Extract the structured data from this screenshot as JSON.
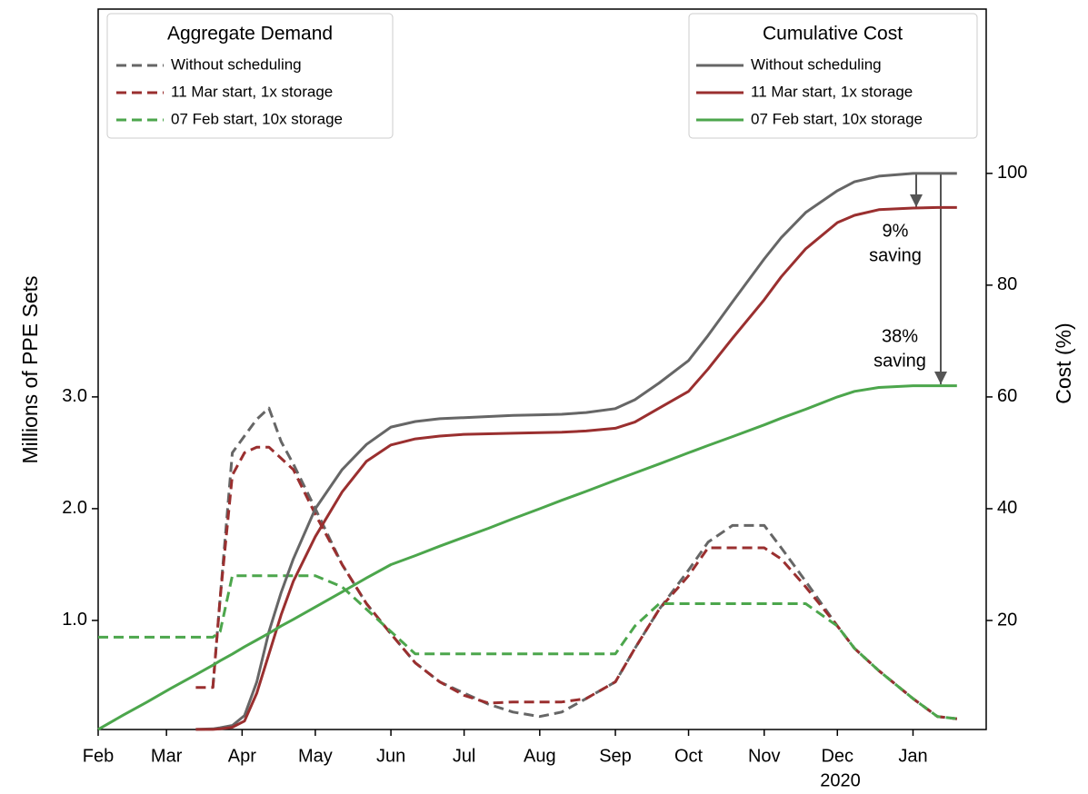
{
  "chart_data": {
    "type": "line",
    "ylabel": "Millions of PPE Sets",
    "y2label": "Cost (%)",
    "xlim": [
      0,
      364
    ],
    "ylim": [
      0.024,
      6.47
    ],
    "y2lim": [
      0.49,
      129.4
    ],
    "xticks": [
      {
        "value": 0,
        "label": "Feb"
      },
      {
        "value": 28,
        "label": "Mar"
      },
      {
        "value": 59,
        "label": "Apr"
      },
      {
        "value": 89,
        "label": "May"
      },
      {
        "value": 120,
        "label": "Jun"
      },
      {
        "value": 150,
        "label": "Jul"
      },
      {
        "value": 181,
        "label": "Aug"
      },
      {
        "value": 212,
        "label": "Sep"
      },
      {
        "value": 242,
        "label": "Oct"
      },
      {
        "value": 273,
        "label": "Nov"
      },
      {
        "value": 303,
        "label": "Dec"
      },
      {
        "value": 334,
        "label": "Jan"
      }
    ],
    "yticks": [
      {
        "value": 1,
        "label": "1.0"
      },
      {
        "value": 2,
        "label": "2.0"
      },
      {
        "value": 3,
        "label": "3.0"
      }
    ],
    "y2ticks": [
      20,
      40,
      60,
      80,
      100
    ],
    "annotations": {
      "year": "2020",
      "saving_small": [
        "9%",
        "saving"
      ],
      "saving_large": [
        "38%",
        "saving"
      ]
    },
    "legends": [
      {
        "title": "Aggregate Demand",
        "corner": "upper left"
      },
      {
        "title": "Cumulative Cost",
        "corner": "upper right"
      }
    ],
    "x": [
      0,
      10,
      20,
      30,
      40,
      47,
      50,
      55,
      60,
      65,
      70,
      75,
      80,
      89,
      100,
      110,
      120,
      130,
      140,
      150,
      160,
      170,
      181,
      190,
      200,
      212,
      220,
      230,
      242,
      250,
      260,
      273,
      280,
      290,
      303,
      310,
      320,
      334,
      344,
      352
    ],
    "series": [
      {
        "name": "Without scheduling",
        "color": "#666666",
        "dash": true,
        "axis": "y",
        "legend": 0,
        "values": [
          null,
          null,
          null,
          null,
          null,
          0.4,
          1.2,
          2.5,
          2.65,
          2.8,
          2.9,
          2.6,
          2.4,
          2.0,
          1.5,
          1.15,
          0.88,
          0.62,
          0.45,
          0.35,
          0.25,
          0.18,
          0.14,
          0.18,
          0.3,
          0.45,
          0.75,
          1.1,
          1.45,
          1.7,
          1.85,
          1.85,
          1.65,
          1.35,
          0.95,
          0.75,
          0.55,
          0.3,
          0.14,
          0.12
        ]
      },
      {
        "name": "11 Mar start, 1x storage",
        "color": "#9a2f2f",
        "dash": true,
        "axis": "y",
        "legend": 0,
        "values": [
          null,
          null,
          null,
          null,
          0.4,
          0.4,
          1.2,
          2.3,
          2.5,
          2.55,
          2.55,
          2.45,
          2.35,
          1.95,
          1.5,
          1.15,
          0.88,
          0.62,
          0.45,
          0.33,
          0.26,
          0.27,
          0.27,
          0.27,
          0.3,
          0.45,
          0.75,
          1.1,
          1.4,
          1.65,
          1.65,
          1.65,
          1.55,
          1.3,
          0.95,
          0.75,
          0.55,
          0.3,
          0.14,
          0.12
        ]
      },
      {
        "name": "07 Feb start, 10x storage",
        "color": "#4ca64c",
        "dash": true,
        "axis": "y",
        "legend": 0,
        "values": [
          0.85,
          0.85,
          0.85,
          0.85,
          0.85,
          0.85,
          0.9,
          1.4,
          1.4,
          1.4,
          1.4,
          1.4,
          1.4,
          1.4,
          1.3,
          1.1,
          0.9,
          0.7,
          0.7,
          0.7,
          0.7,
          0.7,
          0.7,
          0.7,
          0.7,
          0.7,
          0.95,
          1.15,
          1.15,
          1.15,
          1.15,
          1.15,
          1.15,
          1.15,
          0.95,
          0.75,
          0.55,
          0.3,
          0.14,
          0.12
        ]
      },
      {
        "name": "Without scheduling",
        "color": "#666666",
        "dash": false,
        "axis": "y2",
        "legend": 1,
        "values": [
          null,
          null,
          null,
          null,
          0.5,
          0.6,
          0.8,
          1.2,
          3,
          9,
          18,
          25,
          31,
          40,
          47,
          51.5,
          54.6,
          55.6,
          56.1,
          56.3,
          56.5,
          56.7,
          56.8,
          56.9,
          57.2,
          57.9,
          59.5,
          62.5,
          66.5,
          71,
          77,
          84.7,
          88.5,
          93,
          96.9,
          98.5,
          99.5,
          100,
          100,
          100
        ]
      },
      {
        "name": "11 Mar start, 1x storage",
        "color": "#9a2f2f",
        "dash": false,
        "axis": "y2",
        "legend": 1,
        "values": [
          null,
          null,
          null,
          null,
          0.5,
          0.5,
          0.6,
          0.9,
          2,
          7,
          14,
          21,
          27,
          35,
          43,
          48.5,
          51.4,
          52.5,
          53,
          53.3,
          53.4,
          53.5,
          53.6,
          53.7,
          53.9,
          54.4,
          55.5,
          58,
          61,
          65,
          70.5,
          77.4,
          81.5,
          86.5,
          91.2,
          92.5,
          93.5,
          93.8,
          93.9,
          93.9
        ]
      },
      {
        "name": "07 Feb start, 10x storage",
        "color": "#4ca64c",
        "dash": false,
        "axis": "y2",
        "legend": 1,
        "values": [
          0.5,
          3,
          5.4,
          7.9,
          10.3,
          12,
          12.8,
          14,
          15.3,
          16.5,
          17.7,
          19,
          20.2,
          22.4,
          25.1,
          27.6,
          30,
          31.6,
          33.3,
          34.9,
          36.5,
          38.2,
          40,
          41.5,
          43.1,
          45.1,
          46.4,
          48,
          50,
          51.3,
          52.9,
          55,
          56.2,
          57.8,
          60,
          61,
          61.7,
          62,
          62,
          62
        ]
      }
    ]
  }
}
